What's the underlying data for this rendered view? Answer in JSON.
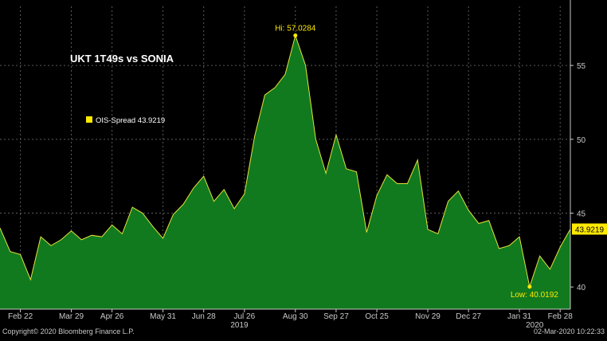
{
  "chart_data": {
    "type": "area",
    "title": "UKT 1T49s vs SONIA",
    "legend": {
      "label": "OIS-Spread 43.9219",
      "placement": "top-left"
    },
    "series": [
      {
        "name": "OIS-Spread",
        "values": [
          44.0,
          42.4,
          42.2,
          40.5,
          43.4,
          42.8,
          43.2,
          43.8,
          43.2,
          43.5,
          43.4,
          44.2,
          43.6,
          45.4,
          45.0,
          44.1,
          43.3,
          44.9,
          45.6,
          46.7,
          47.5,
          45.8,
          46.6,
          45.3,
          46.3,
          50.2,
          53.0,
          53.5,
          54.4,
          57.0284,
          55.0,
          50.0,
          47.7,
          50.3,
          48.0,
          47.8,
          43.7,
          46.2,
          47.6,
          47.0,
          47.0,
          48.6,
          43.9,
          43.6,
          45.8,
          46.5,
          45.2,
          44.3,
          44.5,
          42.6,
          42.8,
          43.4,
          40.0192,
          42.1,
          41.2,
          42.7,
          43.9219
        ]
      }
    ],
    "x_labels": [
      "Feb 22",
      "Mar 29",
      "Apr 26",
      "May 31",
      "Jun 28",
      "Jul 26",
      "Aug 30",
      "Sep 27",
      "Oct 25",
      "Nov 29",
      "Dec 27",
      "Jan 31",
      "Feb 28"
    ],
    "x_label_index": [
      2,
      7,
      11,
      16,
      20,
      24,
      29,
      33,
      37,
      42,
      46,
      51,
      55
    ],
    "year_labels": [
      {
        "text": "2019",
        "index": 23.5
      },
      {
        "text": "2020",
        "index": 52.5
      }
    ],
    "ylim": [
      38.5,
      59.0
    ],
    "y_ticks": [
      40,
      45,
      50,
      55
    ],
    "grid": true,
    "annotations": {
      "high": {
        "label": "Hi: 57.0284",
        "index": 29,
        "value": 57.0284
      },
      "low": {
        "label": "Low: 40.0192",
        "index": 52,
        "value": 40.0192
      },
      "last": {
        "label": "43.9219",
        "value": 43.9219
      }
    },
    "colors": {
      "background": "#000000",
      "fill": "#117a1f",
      "line": "#e6e23a",
      "grid": "#5a5a5a",
      "text": "#ffffff",
      "axis_text": "#c8c8c8",
      "accent": "#ffea00"
    }
  },
  "footer": {
    "copyright": "Copyright© 2020 Bloomberg Finance L.P.",
    "timestamp": "02-Mar-2020 10:22:33"
  }
}
